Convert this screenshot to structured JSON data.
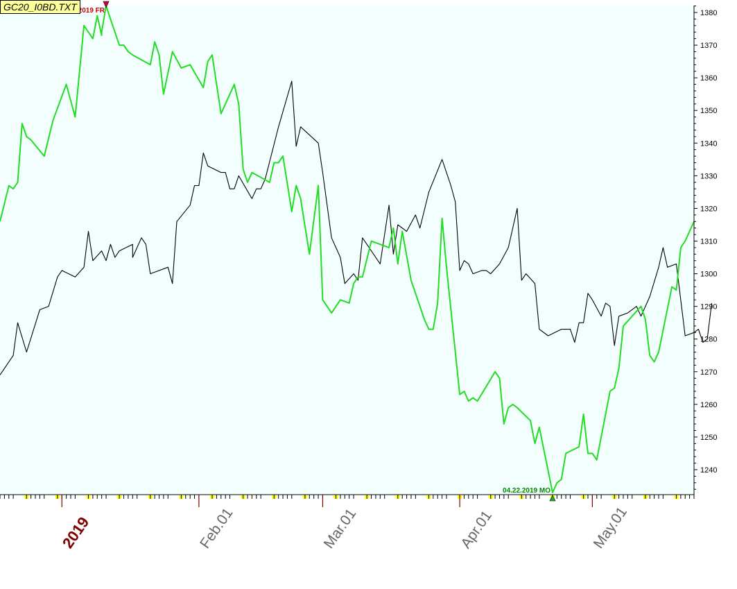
{
  "window": {
    "title": "GC20_I0BD.TXT"
  },
  "colors": {
    "background": "#f3fefe",
    "primary_series": "#22dd22",
    "secondary_series": "#000000",
    "high_marker": "#cc0000",
    "low_marker": "#008800",
    "year_label": "#800000",
    "month_label": "#666666",
    "tick_yellow": "#ffff00"
  },
  "chart_data": {
    "type": "line",
    "title": "GC20_I0BD.TXT",
    "xlabel": "",
    "ylabel": "",
    "x_range": [
      "2018-12-18",
      "2019-05-24"
    ],
    "ylim": [
      1232,
      1384
    ],
    "yticks": [
      1240,
      1250,
      1260,
      1270,
      1280,
      1290,
      1300,
      1310,
      1320,
      1330,
      1340,
      1350,
      1360,
      1370,
      1380
    ],
    "x_tick_labels": [
      {
        "date": "2019-01-01",
        "label": "2019",
        "style": "year"
      },
      {
        "date": "2019-02-01",
        "label": "Feb.01",
        "style": "month"
      },
      {
        "date": "2019-03-01",
        "label": "Mar.01",
        "style": "month"
      },
      {
        "date": "2019-04-01",
        "label": "Apr.01",
        "style": "month"
      },
      {
        "date": "2019-05-01",
        "label": "May.01",
        "style": "month"
      }
    ],
    "grid": false,
    "annotations": [
      {
        "text": "01.11.2019 FR",
        "date": "2019-01-11",
        "value": 1382,
        "kind": "high"
      },
      {
        "text": "04.22.2019 MO",
        "date": "2019-04-22",
        "value": 1233,
        "kind": "low"
      }
    ],
    "series": [
      {
        "name": "",
        "color": "#22dd22",
        "points": [
          [
            "2018-12-18",
            1316
          ],
          [
            "2018-12-20",
            1327
          ],
          [
            "2018-12-21",
            1326
          ],
          [
            "2018-12-22",
            1328
          ],
          [
            "2018-12-23",
            1346
          ],
          [
            "2018-12-24",
            1342
          ],
          [
            "2018-12-25",
            1341
          ],
          [
            "2018-12-28",
            1336
          ],
          [
            "2018-12-30",
            1347
          ],
          [
            "2019-01-02",
            1358
          ],
          [
            "2019-01-04",
            1348
          ],
          [
            "2019-01-06",
            1376
          ],
          [
            "2019-01-08",
            1372
          ],
          [
            "2019-01-09",
            1379
          ],
          [
            "2019-01-10",
            1373
          ],
          [
            "2019-01-10",
            1374
          ],
          [
            "2019-01-11",
            1382
          ],
          [
            "2019-01-14",
            1370
          ],
          [
            "2019-01-15",
            1370
          ],
          [
            "2019-01-16",
            1368
          ],
          [
            "2019-01-17",
            1367
          ],
          [
            "2019-01-21",
            1364
          ],
          [
            "2019-01-22",
            1371
          ],
          [
            "2019-01-23",
            1367
          ],
          [
            "2019-01-24",
            1355
          ],
          [
            "2019-01-26",
            1368
          ],
          [
            "2019-01-28",
            1363
          ],
          [
            "2019-01-30",
            1364
          ],
          [
            "2019-02-02",
            1357
          ],
          [
            "2019-02-03",
            1365
          ],
          [
            "2019-02-04",
            1367
          ],
          [
            "2019-02-06",
            1349
          ],
          [
            "2019-02-09",
            1358
          ],
          [
            "2019-02-10",
            1352
          ],
          [
            "2019-02-11",
            1332
          ],
          [
            "2019-02-12",
            1328
          ],
          [
            "2019-02-13",
            1331
          ],
          [
            "2019-02-17",
            1328
          ],
          [
            "2019-02-18",
            1334
          ],
          [
            "2019-02-19",
            1334
          ],
          [
            "2019-02-20",
            1336
          ],
          [
            "2019-02-22",
            1319
          ],
          [
            "2019-02-23",
            1327
          ],
          [
            "2019-02-24",
            1323
          ],
          [
            "2019-02-26",
            1306
          ],
          [
            "2019-02-28",
            1327
          ],
          [
            "2019-03-01",
            1292
          ],
          [
            "2019-03-03",
            1288
          ],
          [
            "2019-03-05",
            1292
          ],
          [
            "2019-03-07",
            1291
          ],
          [
            "2019-03-08",
            1297
          ],
          [
            "2019-03-09",
            1299
          ],
          [
            "2019-03-10",
            1299
          ],
          [
            "2019-03-12",
            1310
          ],
          [
            "2019-03-14",
            1309
          ],
          [
            "2019-03-16",
            1308
          ],
          [
            "2019-03-17",
            1314
          ],
          [
            "2019-03-18",
            1303
          ],
          [
            "2019-03-19",
            1313
          ],
          [
            "2019-03-21",
            1298
          ],
          [
            "2019-03-24",
            1286
          ],
          [
            "2019-03-25",
            1283
          ],
          [
            "2019-03-26",
            1283
          ],
          [
            "2019-03-27",
            1291
          ],
          [
            "2019-03-28",
            1317
          ],
          [
            "2019-03-29",
            1302
          ],
          [
            "2019-04-01",
            1263
          ],
          [
            "2019-04-02",
            1264
          ],
          [
            "2019-04-03",
            1261
          ],
          [
            "2019-04-04",
            1262
          ],
          [
            "2019-04-05",
            1261
          ],
          [
            "2019-04-09",
            1270
          ],
          [
            "2019-04-10",
            1268
          ],
          [
            "2019-04-11",
            1254
          ],
          [
            "2019-04-12",
            1259
          ],
          [
            "2019-04-13",
            1260
          ],
          [
            "2019-04-14",
            1259
          ],
          [
            "2019-04-17",
            1255
          ],
          [
            "2019-04-18",
            1248
          ],
          [
            "2019-04-19",
            1253
          ],
          [
            "2019-04-22",
            1233
          ],
          [
            "2019-04-23",
            1236
          ],
          [
            "2019-04-24",
            1237
          ],
          [
            "2019-04-25",
            1245
          ],
          [
            "2019-04-28",
            1247
          ],
          [
            "2019-04-29",
            1257
          ],
          [
            "2019-04-30",
            1245
          ],
          [
            "2019-05-01",
            1245
          ],
          [
            "2019-05-02",
            1243
          ],
          [
            "2019-05-05",
            1264
          ],
          [
            "2019-05-06",
            1265
          ],
          [
            "2019-05-07",
            1271
          ],
          [
            "2019-05-08",
            1284
          ],
          [
            "2019-05-12",
            1290
          ],
          [
            "2019-05-13",
            1286
          ],
          [
            "2019-05-14",
            1275
          ],
          [
            "2019-05-15",
            1273
          ],
          [
            "2019-05-16",
            1276
          ],
          [
            "2019-05-19",
            1296
          ],
          [
            "2019-05-20",
            1295
          ],
          [
            "2019-05-21",
            1308
          ],
          [
            "2019-05-22",
            1310
          ],
          [
            "2019-05-24",
            1316
          ]
        ]
      },
      {
        "name": "",
        "color": "#000000",
        "points": [
          [
            "2018-12-18",
            1269
          ],
          [
            "2018-12-21",
            1275
          ],
          [
            "2018-12-22",
            1285
          ],
          [
            "2018-12-24",
            1276
          ],
          [
            "2018-12-27",
            1289
          ],
          [
            "2018-12-29",
            1290
          ],
          [
            "2018-12-31",
            1299
          ],
          [
            "2019-01-01",
            1301
          ],
          [
            "2019-01-04",
            1299
          ],
          [
            "2019-01-06",
            1302
          ],
          [
            "2019-01-07",
            1313
          ],
          [
            "2019-01-08",
            1304
          ],
          [
            "2019-01-10",
            1307
          ],
          [
            "2019-01-11",
            1304
          ],
          [
            "2019-01-12",
            1309
          ],
          [
            "2019-01-13",
            1305
          ],
          [
            "2019-01-14",
            1307
          ],
          [
            "2019-01-17",
            1309
          ],
          [
            "2019-01-17",
            1305
          ],
          [
            "2019-01-19",
            1311
          ],
          [
            "2019-01-20",
            1309
          ],
          [
            "2019-01-21",
            1300
          ],
          [
            "2019-01-25",
            1302
          ],
          [
            "2019-01-26",
            1297
          ],
          [
            "2019-01-27",
            1316
          ],
          [
            "2019-01-30",
            1321
          ],
          [
            "2019-01-31",
            1327
          ],
          [
            "2019-02-01",
            1327
          ],
          [
            "2019-02-02",
            1337
          ],
          [
            "2019-02-03",
            1333
          ],
          [
            "2019-02-06",
            1331
          ],
          [
            "2019-02-07",
            1331
          ],
          [
            "2019-02-08",
            1326
          ],
          [
            "2019-02-09",
            1326
          ],
          [
            "2019-02-10",
            1330
          ],
          [
            "2019-02-13",
            1323
          ],
          [
            "2019-02-14",
            1326
          ],
          [
            "2019-02-15",
            1326
          ],
          [
            "2019-02-16",
            1329
          ],
          [
            "2019-02-19",
            1345
          ],
          [
            "2019-02-22",
            1359
          ],
          [
            "2019-02-23",
            1339
          ],
          [
            "2019-02-24",
            1345
          ],
          [
            "2019-02-28",
            1340
          ],
          [
            "2019-03-01",
            1331
          ],
          [
            "2019-03-03",
            1311
          ],
          [
            "2019-03-05",
            1305
          ],
          [
            "2019-03-06",
            1297
          ],
          [
            "2019-03-08",
            1300
          ],
          [
            "2019-03-09",
            1298
          ],
          [
            "2019-03-10",
            1311
          ],
          [
            "2019-03-14",
            1303
          ],
          [
            "2019-03-16",
            1321
          ],
          [
            "2019-03-17",
            1306
          ],
          [
            "2019-03-18",
            1315
          ],
          [
            "2019-03-20",
            1313
          ],
          [
            "2019-03-22",
            1318
          ],
          [
            "2019-03-23",
            1314
          ],
          [
            "2019-03-25",
            1325
          ],
          [
            "2019-03-28",
            1335
          ],
          [
            "2019-03-30",
            1327
          ],
          [
            "2019-03-31",
            1322
          ],
          [
            "2019-04-01",
            1301
          ],
          [
            "2019-04-02",
            1304
          ],
          [
            "2019-04-03",
            1303
          ],
          [
            "2019-04-04",
            1300
          ],
          [
            "2019-04-06",
            1301
          ],
          [
            "2019-04-07",
            1301
          ],
          [
            "2019-04-08",
            1300
          ],
          [
            "2019-04-10",
            1303
          ],
          [
            "2019-04-12",
            1308
          ],
          [
            "2019-04-14",
            1320
          ],
          [
            "2019-04-15",
            1298
          ],
          [
            "2019-04-16",
            1300
          ],
          [
            "2019-04-18",
            1297
          ],
          [
            "2019-04-19",
            1283
          ],
          [
            "2019-04-21",
            1281
          ],
          [
            "2019-04-24",
            1283
          ],
          [
            "2019-04-26",
            1283
          ],
          [
            "2019-04-27",
            1279
          ],
          [
            "2019-04-28",
            1285
          ],
          [
            "2019-04-29",
            1285
          ],
          [
            "2019-04-30",
            1294
          ],
          [
            "2019-05-01",
            1292
          ],
          [
            "2019-05-03",
            1287
          ],
          [
            "2019-05-04",
            1291
          ],
          [
            "2019-05-05",
            1290
          ],
          [
            "2019-05-06",
            1278
          ],
          [
            "2019-05-07",
            1287
          ],
          [
            "2019-05-09",
            1288
          ],
          [
            "2019-05-11",
            1290
          ],
          [
            "2019-05-12",
            1287
          ],
          [
            "2019-05-13",
            1290
          ],
          [
            "2019-05-14",
            1293
          ],
          [
            "2019-05-16",
            1302
          ],
          [
            "2019-05-17",
            1308
          ],
          [
            "2019-05-18",
            1302
          ],
          [
            "2019-05-20",
            1303
          ],
          [
            "2019-05-22",
            1281
          ],
          [
            "2019-05-24",
            1282
          ],
          [
            "2019-05-25",
            1283
          ],
          [
            "2019-05-26",
            1279
          ],
          [
            "2019-05-27",
            1280
          ],
          [
            "2019-05-28",
            1291
          ]
        ]
      }
    ]
  }
}
